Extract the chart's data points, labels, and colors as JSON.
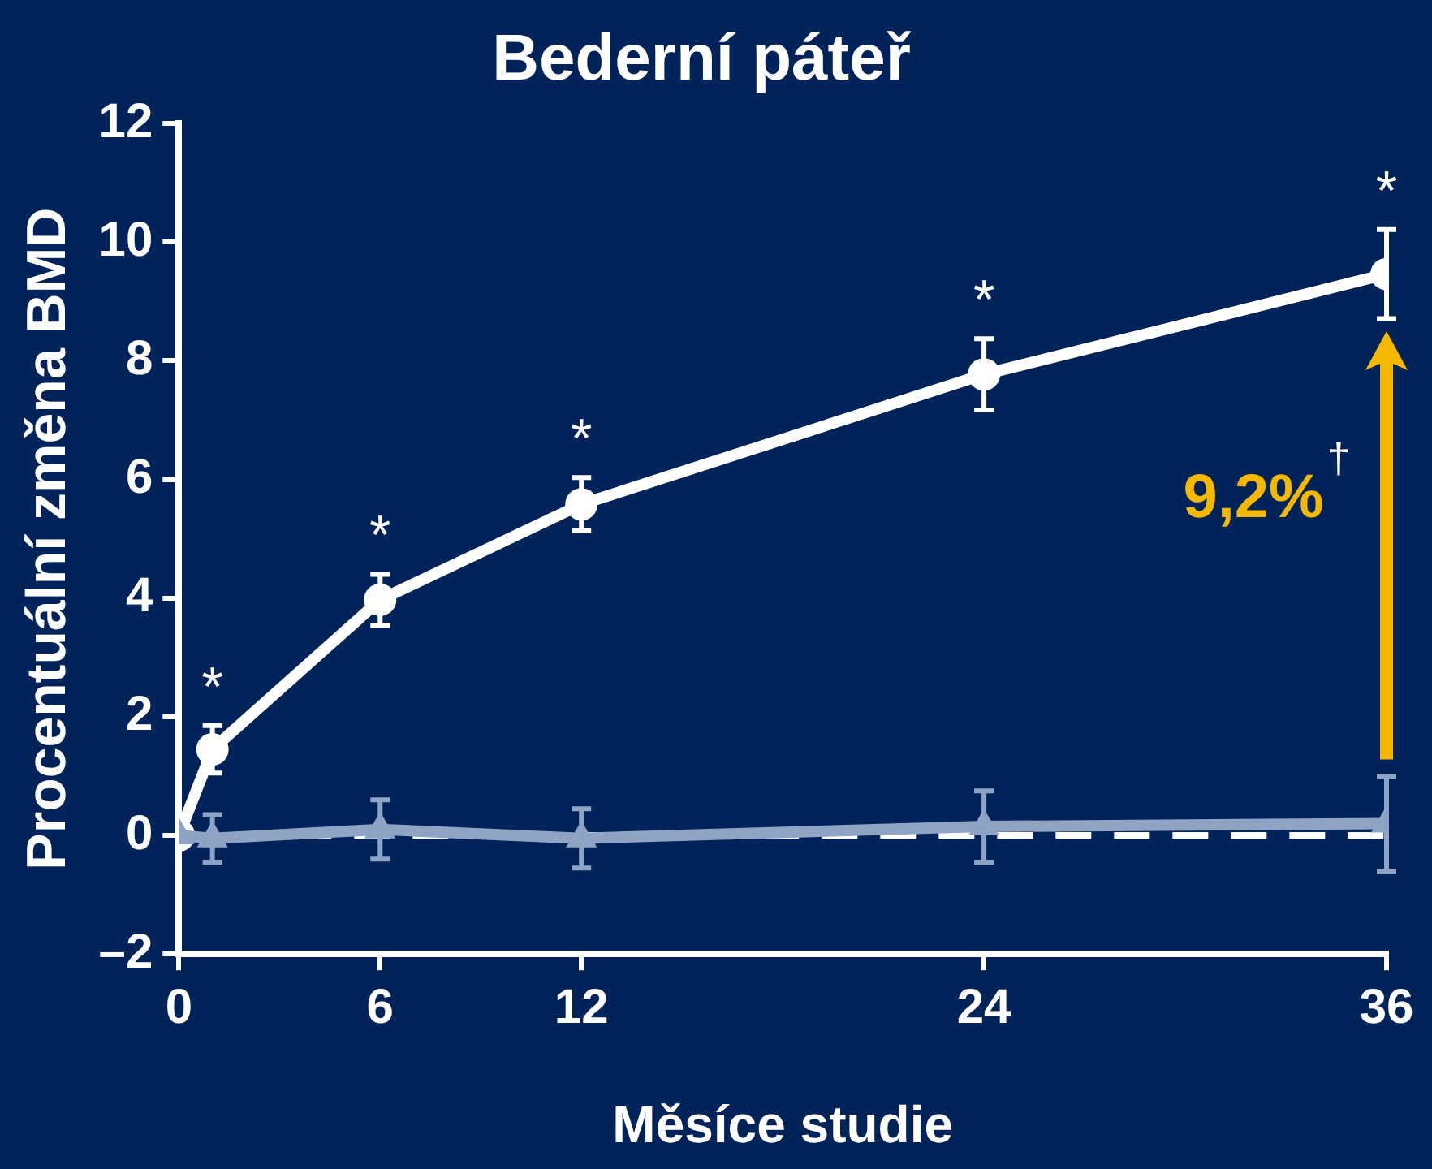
{
  "chart_data": {
    "type": "line",
    "title": "Bederní páteř",
    "xlabel": "Měsíce studie",
    "ylabel": "Procentuální změna BMD",
    "x": [
      0,
      1,
      6,
      12,
      24,
      36
    ],
    "series": [
      {
        "color": "#ffffff",
        "marker": "circle",
        "values": [
          0,
          1.45,
          3.97,
          5.58,
          7.77,
          9.46
        ],
        "errors": [
          null,
          0.4,
          0.43,
          0.45,
          0.6,
          0.75
        ]
      },
      {
        "color": "#8fa3c4",
        "marker": "triangle",
        "values": [
          0,
          -0.05,
          0.1,
          -0.05,
          0.15,
          0.2
        ],
        "errors": [
          null,
          0.4,
          0.5,
          0.5,
          0.6,
          0.8
        ]
      }
    ],
    "xlim": [
      0,
      36
    ],
    "xticks": [
      0,
      6,
      12,
      24,
      36
    ],
    "ylim": [
      -2,
      12
    ],
    "yticks": [
      {
        "value": -2,
        "label": "–2"
      },
      0,
      2,
      4,
      6,
      8,
      10,
      12
    ],
    "grid": false,
    "legend": false,
    "line_style": "solid",
    "ref_lines": [
      {
        "axis": "y",
        "value": 0,
        "color": "#ffffff",
        "line_style": "dashed"
      }
    ],
    "annotations": [
      {
        "text": "*",
        "x": 1,
        "y": 1.45
      },
      {
        "text": "*",
        "x": 6,
        "y": 3.97
      },
      {
        "text": "*",
        "x": 12,
        "y": 5.58
      },
      {
        "text": "*",
        "x": 24,
        "y": 7.77
      },
      {
        "text": "*",
        "x": 36,
        "y": 9.46
      },
      "9,2%$^{†}$"
    ]
  }
}
